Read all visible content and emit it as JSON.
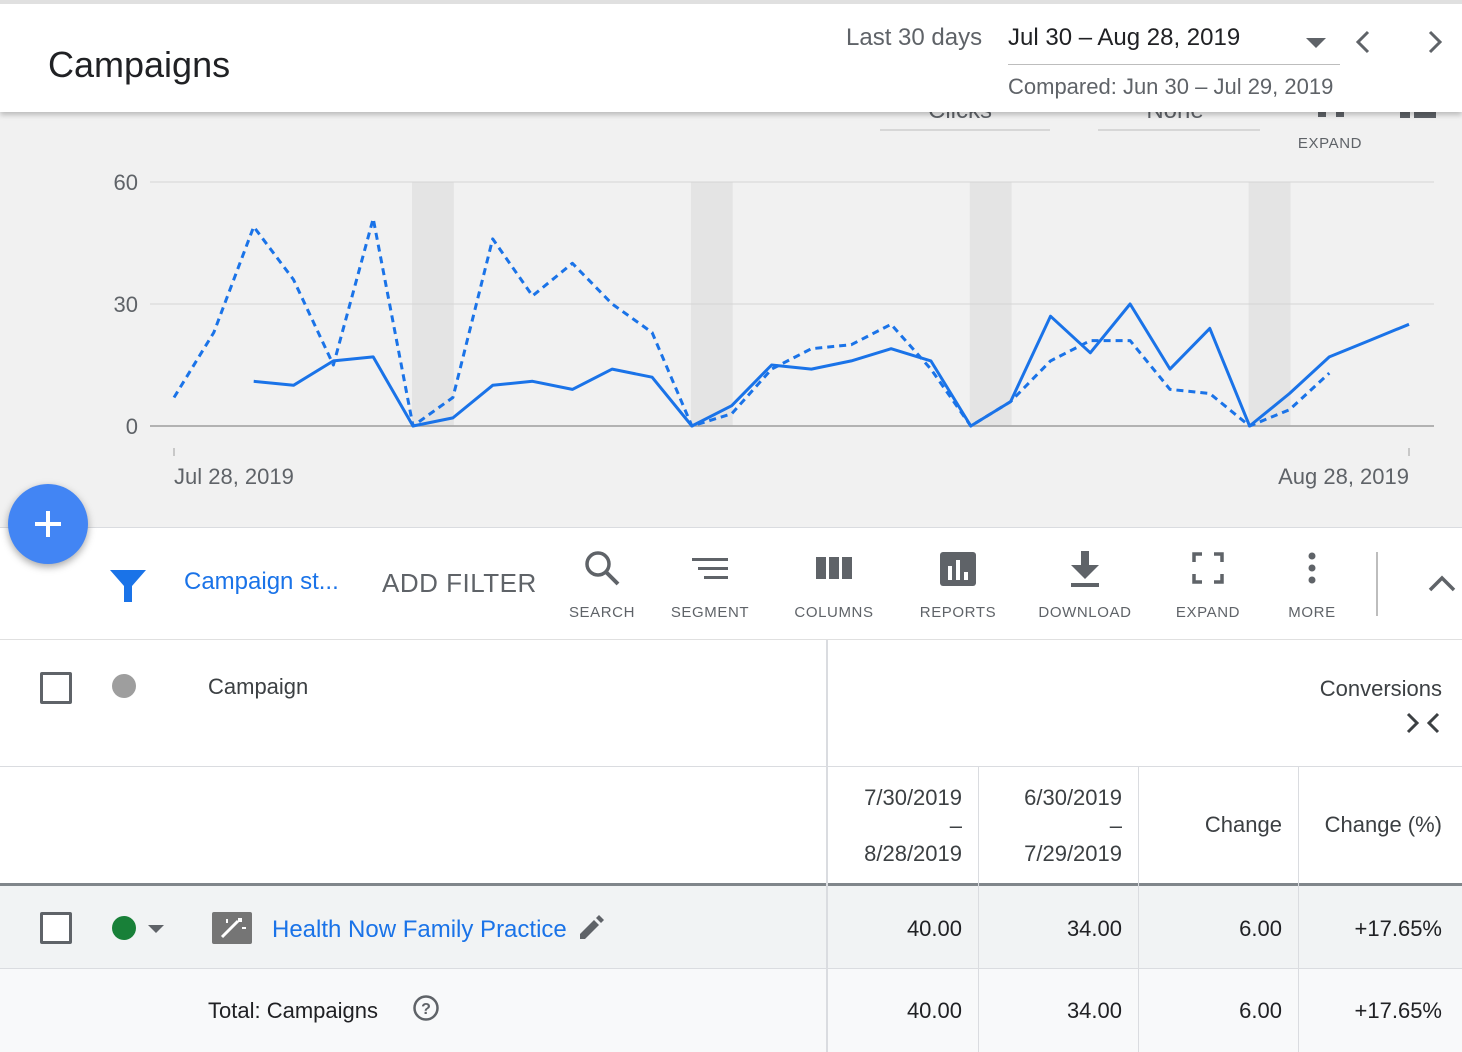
{
  "header": {
    "title": "Campaigns",
    "date_preset": "Last 30 days",
    "date_range": "Jul 30 – Aug 28, 2019",
    "compared": "Compared: Jun 30 – Jul 29, 2019"
  },
  "chart_controls": {
    "metric1": "Clicks",
    "metric2": "None",
    "expand_label": "EXPAND"
  },
  "chart_data": {
    "type": "line",
    "x_start_label": "Jul 28, 2019",
    "x_end_label": "Aug 28, 2019",
    "ylim": [
      0,
      60
    ],
    "yticks": [
      "60",
      "30",
      "0"
    ],
    "grid": true,
    "series": [
      {
        "style": "solid",
        "values": [
          null,
          null,
          11,
          10,
          16,
          17,
          0,
          2,
          10,
          11,
          9,
          14,
          12,
          0,
          5,
          15,
          14,
          16,
          19,
          16,
          0,
          6,
          27,
          18,
          30,
          14,
          24,
          0,
          8,
          17,
          21,
          25
        ]
      },
      {
        "style": "dashed",
        "values": [
          7,
          23,
          49,
          36,
          15,
          51,
          0,
          7,
          46,
          32,
          40,
          30,
          23,
          0,
          3,
          14,
          19,
          20,
          25,
          14,
          0,
          6,
          16,
          21,
          21,
          9,
          8,
          0,
          4,
          13,
          null,
          null
        ]
      }
    ],
    "weekend_bands": [
      [
        6,
        7
      ],
      [
        13,
        14
      ],
      [
        20,
        21
      ],
      [
        27,
        28
      ]
    ],
    "line_color": "#1a73e8"
  },
  "toolbar": {
    "filter_chip": "Campaign st...",
    "add_filter": "ADD FILTER",
    "tools": {
      "search": "SEARCH",
      "segment": "SEGMENT",
      "columns": "COLUMNS",
      "reports": "REPORTS",
      "download": "DOWNLOAD",
      "expand": "EXPAND",
      "more": "MORE"
    }
  },
  "table": {
    "campaign_header": "Campaign",
    "group_header": "Conversions",
    "col_current_top": "7/30/2019",
    "col_current_dash": "–",
    "col_current_bottom": "8/28/2019",
    "col_previous_top": "6/30/2019",
    "col_previous_dash": "–",
    "col_previous_bottom": "7/29/2019",
    "col_change": "Change",
    "col_change_pct": "Change (%)",
    "row": {
      "name": "Health Now Family Practice",
      "current": "40.00",
      "previous": "34.00",
      "change": "6.00",
      "change_pct": "+17.65%",
      "status_color": "#188038"
    },
    "total": {
      "label": "Total: Campaigns",
      "current": "40.00",
      "previous": "34.00",
      "change": "6.00",
      "change_pct": "+17.65%"
    }
  }
}
